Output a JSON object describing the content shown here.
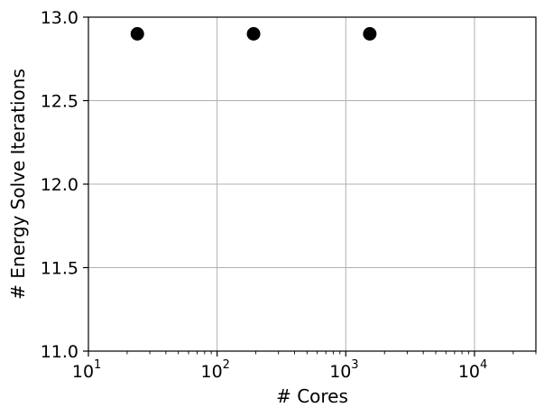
{
  "chart_data": {
    "type": "scatter",
    "xlabel": "# Cores",
    "ylabel": "# Energy Solve Iterations",
    "x_scale": "log",
    "xlim": [
      10,
      30000
    ],
    "ylim": [
      11.0,
      13.0
    ],
    "grid": true,
    "x_ticks": [
      {
        "value": 10,
        "base": "10",
        "exp": "1"
      },
      {
        "value": 100,
        "base": "10",
        "exp": "2"
      },
      {
        "value": 1000,
        "base": "10",
        "exp": "3"
      },
      {
        "value": 10000,
        "base": "10",
        "exp": "4"
      }
    ],
    "y_ticks": [
      {
        "value": 11.0,
        "label": "11.0"
      },
      {
        "value": 11.5,
        "label": "11.5"
      },
      {
        "value": 12.0,
        "label": "12.0"
      },
      {
        "value": 12.5,
        "label": "12.5"
      },
      {
        "value": 13.0,
        "label": "13.0"
      }
    ],
    "points": [
      {
        "x": 24,
        "y": 12.9
      },
      {
        "x": 192,
        "y": 12.9
      },
      {
        "x": 1536,
        "y": 12.9
      }
    ],
    "marker_color": "#000000"
  }
}
